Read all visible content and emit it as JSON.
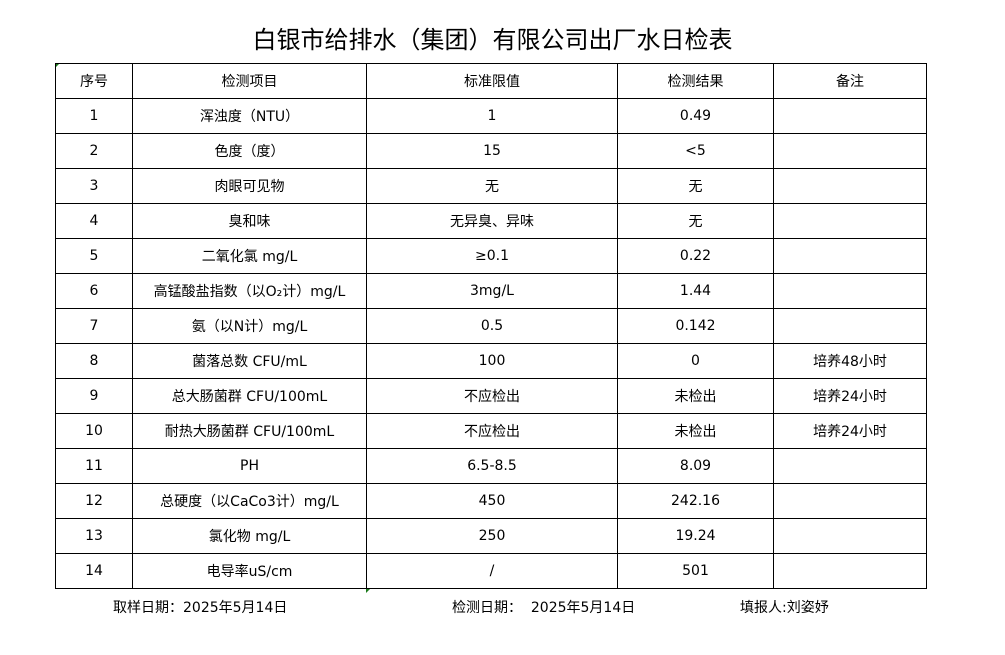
{
  "title": "白银市给排水（集团）有限公司出厂水日检表",
  "headers": [
    "序号",
    "检测项目",
    "标准限值",
    "检测结果",
    "备注"
  ],
  "rows": [
    [
      "1",
      "浑浊度（NTU）",
      "1",
      "0.49",
      ""
    ],
    [
      "2",
      "色度（度）",
      "15",
      "<5",
      ""
    ],
    [
      "3",
      "肉眼可见物",
      "无",
      "无",
      ""
    ],
    [
      "4",
      "臭和味",
      "无异臭、异味",
      "无",
      ""
    ],
    [
      "5",
      "二氧化氯 mg/L",
      "≥0.1",
      "0.22",
      ""
    ],
    [
      "6",
      "高锰酸盐指数（以O₂计）mg/L",
      "3mg/L",
      "1.44",
      ""
    ],
    [
      "7",
      "氨（以N计）mg/L",
      "0.5",
      "0.142",
      ""
    ],
    [
      "8",
      "菌落总数 CFU/mL",
      "100",
      "0",
      "培养48小时"
    ],
    [
      "9",
      "总大肠菌群 CFU/100mL",
      "不应检出",
      "未检出",
      "培养24小时"
    ],
    [
      "10",
      "耐热大肠菌群 CFU/100mL",
      "不应检出",
      "未检出",
      "培养24小时"
    ],
    [
      "11",
      "PH",
      "6.5-8.5",
      "8.09",
      ""
    ],
    [
      "12",
      "总硬度（以CaCo3计）mg/L",
      "450",
      "242.16",
      ""
    ],
    [
      "13",
      "氯化物 mg/L",
      "250",
      "19.24",
      ""
    ],
    [
      "14",
      "电导率uS/cm",
      "/",
      "501",
      ""
    ]
  ],
  "footer": {
    "sampling_date": "取样日期：2025年5月14日",
    "test_date": "检测日期：  2025年5月14日",
    "reporter": "填报人:刘姿妤"
  }
}
